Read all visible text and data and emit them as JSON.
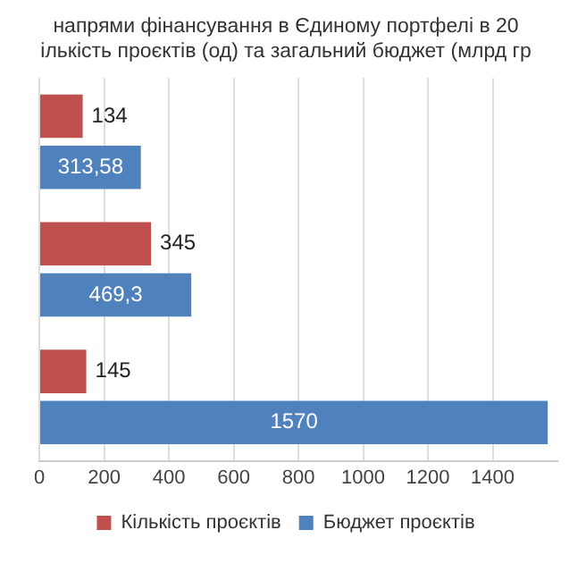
{
  "chart_data": {
    "type": "bar",
    "orientation": "horizontal",
    "title": [
      "напрями фінансування в Єдиному портфелі в 20",
      "ількість проєктів (од) та загальний бюджет (млрд гр"
    ],
    "categories": [
      null,
      null,
      null
    ],
    "series": [
      {
        "name": "Кількість проєктів",
        "color": "#c0504d",
        "values": [
          134,
          345,
          145
        ],
        "value_labels": [
          "134",
          "345",
          "145"
        ]
      },
      {
        "name": "Бюджет проєктів",
        "color": "#4f81bd",
        "values": [
          313.58,
          469.3,
          1570
        ],
        "value_labels": [
          "313,58",
          "469,3",
          "1570"
        ]
      }
    ],
    "xlim": [
      0,
      1600
    ],
    "xticks": [
      0,
      200,
      400,
      600,
      800,
      1000,
      1200,
      1400
    ],
    "grid": "x",
    "legend": "bottom"
  }
}
